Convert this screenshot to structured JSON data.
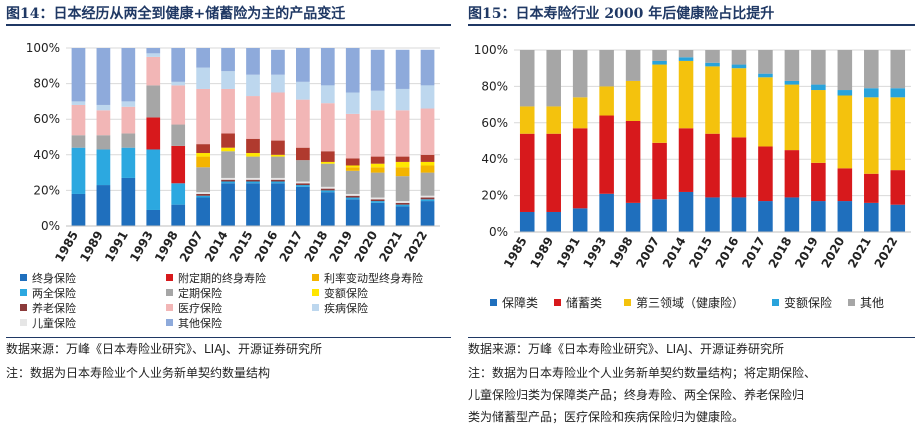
{
  "left": {
    "title": "图14：日本经历从两全到健康+储蓄险为主的产品变迁",
    "source": "数据来源：万峰《日本寿险业研究》、LIAJ、开源证券研究所",
    "note": "注：数据为日本寿险业个人业务新单契约数量结构"
  },
  "right": {
    "title": "图15：日本寿险行业 2000 年后健康险占比提升",
    "source": "数据来源：万峰《日本寿险业研究》、LIAJ、开源证券研究所",
    "note_lines": [
      "注：数据为日本寿险业个人业务新单契约数量结构；将定期保险、",
      "儿童保险归类为保障类产品；终身寿险、两全保险、养老保险归",
      "类为储蓄型产品；医疗保险和疾病保险归为健康险。"
    ]
  },
  "chart_data": [
    {
      "type": "bar",
      "stacked": true,
      "categories": [
        "1985",
        "1989",
        "1991",
        "1993",
        "1998",
        "2007",
        "2014",
        "2015",
        "2016",
        "2017",
        "2018",
        "2019",
        "2020",
        "2021",
        "2022"
      ],
      "yticks": [
        "0%",
        "20%",
        "40%",
        "60%",
        "80%",
        "100%"
      ],
      "ylim": [
        0,
        100
      ],
      "series": [
        {
          "name": "终身保险",
          "color": "#1f6fbd",
          "values": [
            18,
            23,
            27,
            9,
            12,
            16,
            24,
            24,
            24,
            22,
            19,
            15,
            13,
            11,
            14
          ]
        },
        {
          "name": "两全保险",
          "color": "#2ca8e0",
          "values": [
            26,
            20,
            17,
            34,
            12,
            1,
            1,
            1,
            1,
            1,
            1,
            1,
            1,
            1,
            1
          ]
        },
        {
          "name": "养老保险",
          "color": "#8b3a3a",
          "values": [
            0,
            0,
            0,
            0,
            0,
            1,
            1,
            1,
            1,
            1,
            1,
            1,
            1,
            1,
            1
          ]
        },
        {
          "name": "儿童保险",
          "color": "#e6e6e6",
          "values": [
            0,
            0,
            0,
            0,
            0,
            1,
            1,
            1,
            1,
            1,
            1,
            1,
            1,
            1,
            1
          ]
        },
        {
          "name": "附定期的终身寿险",
          "color": "#d7191c",
          "values": [
            0,
            0,
            0,
            18,
            21,
            0,
            0,
            0,
            0,
            0,
            0,
            0,
            0,
            0,
            0
          ]
        },
        {
          "name": "定期保险",
          "color": "#a6a6a6",
          "values": [
            7,
            8,
            8,
            18,
            12,
            14,
            15,
            12,
            12,
            12,
            13,
            13,
            14,
            14,
            13
          ]
        },
        {
          "name": "利率变动型终身寿险",
          "color": "#f4b400",
          "values": [
            0,
            0,
            0,
            0,
            0,
            6,
            0,
            0,
            0,
            0,
            0,
            2,
            3,
            5,
            4
          ]
        },
        {
          "name": "变额保险",
          "color": "#ffe600",
          "values": [
            0,
            0,
            0,
            0,
            0,
            2,
            2,
            2,
            1,
            0,
            1,
            1,
            2,
            3,
            2
          ]
        },
        {
          "name": "养老保险",
          "color": "#b03a2e",
          "values": [
            0,
            0,
            0,
            0,
            0,
            5,
            8,
            8,
            8,
            7,
            6,
            4,
            4,
            3,
            4
          ]
        },
        {
          "name": "医疗保险",
          "color": "#f2b6b6",
          "values": [
            17,
            14,
            15,
            16,
            22,
            31,
            25,
            24,
            27,
            27,
            27,
            25,
            26,
            26,
            26
          ]
        },
        {
          "name": "疾病保险",
          "color": "#bdd7ee",
          "values": [
            2,
            3,
            3,
            2,
            2,
            12,
            10,
            12,
            10,
            10,
            10,
            12,
            11,
            12,
            13
          ]
        },
        {
          "name": "其他保险",
          "color": "#8eaadb",
          "values": [
            30,
            32,
            30,
            3,
            19,
            11,
            13,
            15,
            14,
            19,
            21,
            25,
            23,
            22,
            20
          ]
        }
      ],
      "legend": [
        {
          "label": "终身保险",
          "color": "#1f6fbd"
        },
        {
          "label": "附定期的终身寿险",
          "color": "#d7191c"
        },
        {
          "label": "利率变动型终身寿险",
          "color": "#f4b400"
        },
        {
          "label": "两全保险",
          "color": "#2ca8e0"
        },
        {
          "label": "定期保险",
          "color": "#a6a6a6"
        },
        {
          "label": "变额保险",
          "color": "#ffe600"
        },
        {
          "label": "养老保险",
          "color": "#8b3a3a"
        },
        {
          "label": "医疗保险",
          "color": "#f2b6b6"
        },
        {
          "label": "疾病保险",
          "color": "#bdd7ee"
        },
        {
          "label": "儿童保险",
          "color": "#e6e6e6"
        },
        {
          "label": "其他保险",
          "color": "#8eaadb"
        }
      ]
    },
    {
      "type": "bar",
      "stacked": true,
      "categories": [
        "1985",
        "1989",
        "1991",
        "1993",
        "1998",
        "2007",
        "2014",
        "2015",
        "2016",
        "2017",
        "2018",
        "2019",
        "2020",
        "2021",
        "2022"
      ],
      "yticks": [
        "0%",
        "20%",
        "40%",
        "60%",
        "80%",
        "100%"
      ],
      "ylim": [
        0,
        100
      ],
      "series": [
        {
          "name": "保障类",
          "color": "#1f6fbd",
          "values": [
            11,
            11,
            13,
            21,
            16,
            18,
            22,
            19,
            19,
            17,
            19,
            17,
            17,
            16,
            15
          ]
        },
        {
          "name": "储蓄类",
          "color": "#d7191c",
          "values": [
            43,
            43,
            44,
            43,
            45,
            31,
            35,
            35,
            33,
            30,
            26,
            21,
            18,
            16,
            19
          ]
        },
        {
          "name": "第三领域（健康险）",
          "color": "#f4c20d",
          "values": [
            15,
            15,
            17,
            16,
            22,
            43,
            37,
            37,
            38,
            38,
            36,
            40,
            40,
            42,
            40
          ]
        },
        {
          "name": "变额保险",
          "color": "#29a3db",
          "values": [
            0,
            0,
            0,
            0,
            0,
            2,
            2,
            2,
            2,
            2,
            2,
            3,
            3,
            5,
            5
          ]
        },
        {
          "name": "其他",
          "color": "#a6a6a6",
          "values": [
            31,
            31,
            26,
            20,
            17,
            6,
            4,
            7,
            8,
            13,
            17,
            19,
            22,
            21,
            21
          ]
        }
      ],
      "legend": [
        {
          "label": "保障类",
          "color": "#1f6fbd"
        },
        {
          "label": "储蓄类",
          "color": "#d7191c"
        },
        {
          "label": "第三领域（健康险）",
          "color": "#f4c20d"
        },
        {
          "label": "变额保险",
          "color": "#29a3db"
        },
        {
          "label": "其他",
          "color": "#a6a6a6"
        }
      ]
    }
  ]
}
